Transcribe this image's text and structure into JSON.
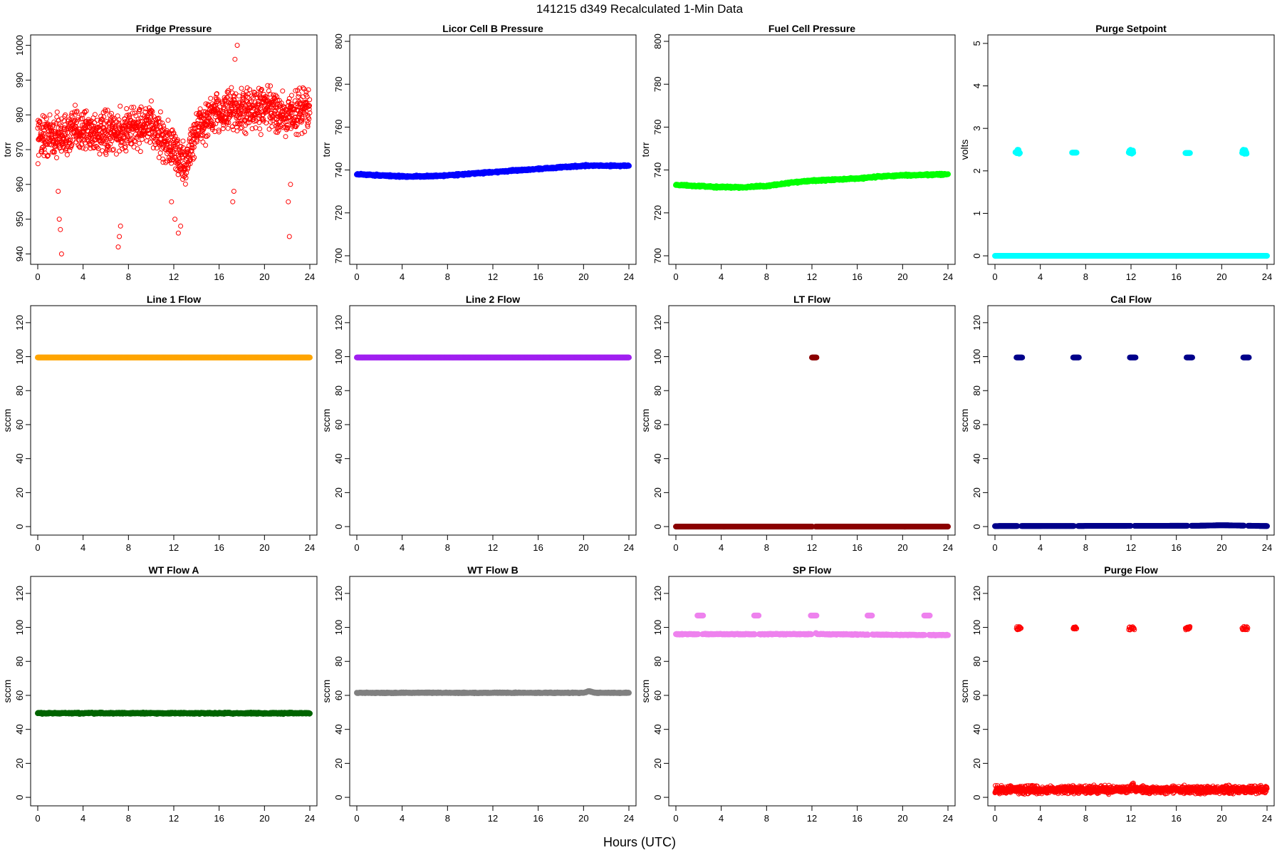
{
  "figure": {
    "title": "141215   d349   Recalculated 1-Min Data",
    "xlabel": "Hours (UTC)"
  },
  "chart_data": [
    {
      "type": "scatter",
      "title": "Fridge Pressure",
      "ylabel": "torr",
      "color": "#ff0000",
      "marker": "hollow",
      "xlim": [
        0,
        24
      ],
      "xticks": [
        0,
        4,
        8,
        12,
        16,
        20,
        24
      ],
      "ylim": [
        937,
        1003
      ],
      "yticks": [
        940,
        950,
        960,
        970,
        980,
        990,
        1000
      ],
      "profile": [
        [
          0,
          974
        ],
        [
          2,
          974
        ],
        [
          4,
          976
        ],
        [
          6,
          974
        ],
        [
          8,
          976
        ],
        [
          10,
          977
        ],
        [
          12,
          970
        ],
        [
          13,
          965
        ],
        [
          14,
          976
        ],
        [
          16,
          981
        ],
        [
          18,
          981
        ],
        [
          20,
          982
        ],
        [
          22,
          980
        ],
        [
          24,
          982
        ]
      ],
      "spread": 5,
      "spikes": [
        [
          1.8,
          958
        ],
        [
          1.9,
          950
        ],
        [
          2.0,
          947
        ],
        [
          2.1,
          940
        ],
        [
          7.1,
          942
        ],
        [
          7.2,
          945
        ],
        [
          7.3,
          948
        ],
        [
          11.8,
          955
        ],
        [
          12.1,
          950
        ],
        [
          12.4,
          946
        ],
        [
          12.6,
          948
        ],
        [
          17.2,
          955
        ],
        [
          17.3,
          958
        ],
        [
          17.6,
          1000
        ],
        [
          17.4,
          996
        ],
        [
          22.1,
          955
        ],
        [
          22.2,
          945
        ],
        [
          22.3,
          960
        ]
      ]
    },
    {
      "type": "scatter",
      "title": "Licor Cell B Pressure",
      "ylabel": "torr",
      "color": "#0000ff",
      "marker": "filled",
      "xlim": [
        0,
        24
      ],
      "xticks": [
        0,
        4,
        8,
        12,
        16,
        20,
        24
      ],
      "ylim": [
        696,
        803
      ],
      "yticks": [
        700,
        720,
        740,
        760,
        780,
        800
      ],
      "profile": [
        [
          0,
          738
        ],
        [
          4,
          737
        ],
        [
          6,
          737
        ],
        [
          8,
          737.5
        ],
        [
          12,
          739
        ],
        [
          16,
          740.5
        ],
        [
          20,
          742
        ],
        [
          24,
          742
        ]
      ],
      "spread": 0.3
    },
    {
      "type": "scatter",
      "title": "Fuel Cell Pressure",
      "ylabel": "torr",
      "color": "#00ff00",
      "marker": "filled",
      "xlim": [
        0,
        24
      ],
      "xticks": [
        0,
        4,
        8,
        12,
        16,
        20,
        24
      ],
      "ylim": [
        696,
        803
      ],
      "yticks": [
        700,
        720,
        740,
        760,
        780,
        800
      ],
      "profile": [
        [
          0,
          733
        ],
        [
          2,
          732.5
        ],
        [
          4,
          732
        ],
        [
          6,
          732
        ],
        [
          8,
          732.5
        ],
        [
          10,
          734
        ],
        [
          12,
          735
        ],
        [
          14,
          735.5
        ],
        [
          16,
          736
        ],
        [
          18,
          737
        ],
        [
          20,
          737.5
        ],
        [
          24,
          738
        ]
      ],
      "spread": 0.3
    },
    {
      "type": "scatter",
      "title": "Purge Setpoint",
      "ylabel": "volts",
      "color": "#00ffff",
      "marker": "filled",
      "xlim": [
        0,
        24
      ],
      "xticks": [
        0,
        4,
        8,
        12,
        16,
        20,
        24
      ],
      "ylim": [
        -0.2,
        5.2
      ],
      "yticks": [
        0,
        1,
        2,
        3,
        4,
        5
      ],
      "profile": [
        [
          0,
          0
        ],
        [
          24,
          0
        ]
      ],
      "spread": 0,
      "clusters": [
        [
          1.8,
          2.2,
          2.4,
          2.5
        ],
        [
          6.8,
          7.2,
          2.43,
          2.43
        ],
        [
          11.8,
          12.2,
          2.4,
          2.5
        ],
        [
          16.8,
          17.2,
          2.42,
          2.42
        ],
        [
          21.8,
          22.2,
          2.4,
          2.5
        ]
      ]
    },
    {
      "type": "scatter",
      "title": "Line 1 Flow",
      "ylabel": "sccm",
      "color": "#ffa500",
      "marker": "filled",
      "xlim": [
        0,
        24
      ],
      "xticks": [
        0,
        4,
        8,
        12,
        16,
        20,
        24
      ],
      "ylim": [
        -5,
        130
      ],
      "yticks": [
        0,
        20,
        40,
        60,
        80,
        100,
        120
      ],
      "profile": [
        [
          0,
          99.5
        ],
        [
          24,
          99.5
        ]
      ],
      "spread": 0
    },
    {
      "type": "scatter",
      "title": "Line 2 Flow",
      "ylabel": "sccm",
      "color": "#a020f0",
      "marker": "filled",
      "xlim": [
        0,
        24
      ],
      "xticks": [
        0,
        4,
        8,
        12,
        16,
        20,
        24
      ],
      "ylim": [
        -5,
        130
      ],
      "yticks": [
        0,
        20,
        40,
        60,
        80,
        100,
        120
      ],
      "profile": [
        [
          0,
          99.5
        ],
        [
          24,
          99.5
        ]
      ],
      "spread": 0
    },
    {
      "type": "scatter",
      "title": "LT Flow",
      "ylabel": "sccm",
      "color": "#8b0000",
      "marker": "filled",
      "xlim": [
        0,
        24
      ],
      "xticks": [
        0,
        4,
        8,
        12,
        16,
        20,
        24
      ],
      "ylim": [
        -5,
        130
      ],
      "yticks": [
        0,
        20,
        40,
        60,
        80,
        100,
        120
      ],
      "profile": [
        [
          0,
          0
        ],
        [
          24,
          0
        ]
      ],
      "spread": 0,
      "gaps": [
        [
          12.05,
          12.3
        ]
      ],
      "clusters": [
        [
          12.0,
          12.4,
          99.5,
          99.5
        ]
      ]
    },
    {
      "type": "scatter",
      "title": "Cal Flow",
      "ylabel": "sccm",
      "color": "#00008b",
      "marker": "filled",
      "xlim": [
        0,
        24
      ],
      "xticks": [
        0,
        4,
        8,
        12,
        16,
        20,
        24
      ],
      "ylim": [
        -5,
        130
      ],
      "yticks": [
        0,
        20,
        40,
        60,
        80,
        100,
        120
      ],
      "profile": [
        [
          0,
          0.3
        ],
        [
          18,
          0.5
        ],
        [
          20,
          0.8
        ],
        [
          24,
          0.3
        ]
      ],
      "spread": 0,
      "gaps": [
        [
          2.0,
          2.3
        ],
        [
          7.0,
          7.3
        ],
        [
          12.0,
          12.3
        ],
        [
          17.0,
          17.3
        ],
        [
          22.0,
          22.3
        ]
      ],
      "clusters": [
        [
          1.9,
          2.4,
          99.5,
          99.5
        ],
        [
          6.9,
          7.4,
          99.5,
          99.5
        ],
        [
          11.9,
          12.4,
          99.5,
          99.5
        ],
        [
          16.9,
          17.4,
          99.5,
          99.5
        ],
        [
          21.9,
          22.4,
          99.5,
          99.5
        ]
      ]
    },
    {
      "type": "scatter",
      "title": "WT Flow A",
      "ylabel": "sccm",
      "color": "#006400",
      "marker": "filled",
      "xlim": [
        0,
        24
      ],
      "xticks": [
        0,
        4,
        8,
        12,
        16,
        20,
        24
      ],
      "ylim": [
        -5,
        130
      ],
      "yticks": [
        0,
        20,
        40,
        60,
        80,
        100,
        120
      ],
      "profile": [
        [
          0,
          49.5
        ],
        [
          24,
          49.5
        ]
      ],
      "spread": 0.3
    },
    {
      "type": "scatter",
      "title": "WT Flow B",
      "ylabel": "sccm",
      "color": "#808080",
      "marker": "filled",
      "xlim": [
        0,
        24
      ],
      "xticks": [
        0,
        4,
        8,
        12,
        16,
        20,
        24
      ],
      "ylim": [
        -5,
        130
      ],
      "yticks": [
        0,
        20,
        40,
        60,
        80,
        100,
        120
      ],
      "profile": [
        [
          0,
          61.5
        ],
        [
          20,
          61.5
        ],
        [
          20.5,
          62.5
        ],
        [
          21,
          61.5
        ],
        [
          24,
          61.5
        ]
      ],
      "spread": 0.2
    },
    {
      "type": "scatter",
      "title": "SP Flow",
      "ylabel": "sccm",
      "color": "#ee82ee",
      "marker": "filled",
      "xlim": [
        0,
        24
      ],
      "xticks": [
        0,
        4,
        8,
        12,
        16,
        20,
        24
      ],
      "ylim": [
        -5,
        130
      ],
      "yticks": [
        0,
        20,
        40,
        60,
        80,
        100,
        120
      ],
      "profile": [
        [
          0,
          96
        ],
        [
          12,
          96
        ],
        [
          12.3,
          97
        ],
        [
          12.5,
          96
        ],
        [
          22,
          95.5
        ],
        [
          24,
          95.5
        ]
      ],
      "spread": 0.2,
      "gaps": [
        [
          2.0,
          2.3
        ],
        [
          7.0,
          7.3
        ],
        [
          12.0,
          12.3
        ],
        [
          17.0,
          17.3
        ],
        [
          22.0,
          22.3
        ]
      ],
      "clusters": [
        [
          1.9,
          2.4,
          107,
          107
        ],
        [
          6.9,
          7.3,
          107,
          107
        ],
        [
          11.9,
          12.4,
          107,
          107
        ],
        [
          16.9,
          17.3,
          107,
          107
        ],
        [
          21.9,
          22.4,
          107,
          107
        ]
      ]
    },
    {
      "type": "scatter",
      "title": "Purge Flow",
      "ylabel": "sccm",
      "color": "#ff0000",
      "marker": "hollow",
      "xlim": [
        0,
        24
      ],
      "xticks": [
        0,
        4,
        8,
        12,
        16,
        20,
        24
      ],
      "ylim": [
        -5,
        130
      ],
      "yticks": [
        0,
        20,
        40,
        60,
        80,
        100,
        120
      ],
      "profile": [
        [
          0,
          4.5
        ],
        [
          12,
          4.5
        ],
        [
          12.1,
          7
        ],
        [
          12.3,
          4.5
        ],
        [
          24,
          4.5
        ]
      ],
      "spread": 1.8,
      "clusters": [
        [
          1.9,
          2.3,
          98.5,
          100.5
        ],
        [
          6.9,
          7.2,
          99,
          100.5
        ],
        [
          11.8,
          12.3,
          98.5,
          100.5
        ],
        [
          16.8,
          17.2,
          98.5,
          100.5
        ],
        [
          21.8,
          22.3,
          98.5,
          100.5
        ]
      ]
    }
  ]
}
